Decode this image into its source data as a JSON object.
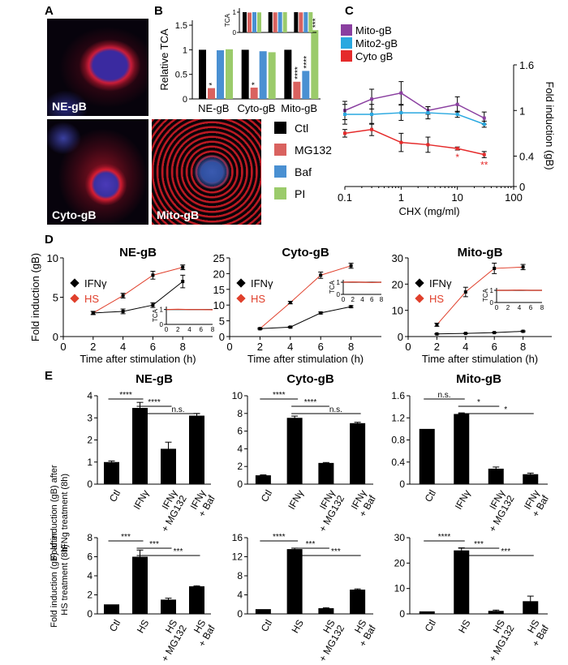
{
  "panels": {
    "A": "A",
    "B": "B",
    "C": "C",
    "D": "D",
    "E": "E"
  },
  "panelA": {
    "images": [
      {
        "id": "ne",
        "label": "NE-gB"
      },
      {
        "id": "cyto",
        "label": "Cyto-gB"
      },
      {
        "id": "mito",
        "label": "Mito-gB"
      }
    ]
  },
  "colors": {
    "ctl": "#000000",
    "mg132": "#d9625f",
    "baf": "#4a90d2",
    "pi": "#9bcb6b",
    "mito": "#8a3fa0",
    "mito2": "#29a8e0",
    "cyto": "#e52b2b",
    "red": "#e0402c",
    "black": "#000000",
    "gray": "#888888"
  },
  "chart_data": [
    {
      "id": "B",
      "type": "bar",
      "ylabel": "Relative TCA",
      "ylim": [
        0,
        1.6
      ],
      "yticks": [
        0,
        0.5,
        1,
        1.5
      ],
      "categories": [
        "NE-gB",
        "Cyto-gB",
        "Mito-gB"
      ],
      "series": [
        {
          "name": "Ctl",
          "values": [
            1.0,
            1.0,
            1.0
          ]
        },
        {
          "name": "MG132",
          "values": [
            0.22,
            0.23,
            0.35
          ]
        },
        {
          "name": "Baf",
          "values": [
            0.99,
            0.97,
            0.57
          ]
        },
        {
          "name": "PI",
          "values": [
            1.01,
            0.95,
            1.4
          ]
        }
      ],
      "sig": [
        [
          "",
          "*",
          "",
          ""
        ],
        [
          "",
          "*",
          "",
          ""
        ],
        [
          "",
          "****",
          "****",
          "***"
        ]
      ],
      "legend": [
        "Ctl",
        "MG132",
        "Baf",
        "PI"
      ],
      "inset": {
        "ylabel": "TCA",
        "ylim": [
          0,
          1.2
        ],
        "yticks": [
          0,
          1
        ],
        "values": [
          [
            1.0,
            0.98,
            1.0,
            0.99
          ],
          [
            1.0,
            0.99,
            1.0,
            1.0
          ],
          [
            1.0,
            0.99,
            1.0,
            1.0
          ]
        ]
      }
    },
    {
      "id": "C",
      "type": "line",
      "xscale": "log",
      "xlabel": "CHX (mg/ml)",
      "ylabel": "Fold induction (gB)",
      "xlim": [
        0.1,
        100
      ],
      "ylim": [
        0,
        1.6
      ],
      "yticks": [
        0,
        0.4,
        1.0,
        1.6
      ],
      "xticks": [
        0.1,
        1,
        10,
        100
      ],
      "series": [
        {
          "name": "Mito-gB",
          "x": [
            0.1,
            0.3,
            1,
            3,
            10,
            30
          ],
          "y": [
            1.0,
            1.15,
            1.23,
            1.0,
            1.08,
            0.9
          ],
          "err": [
            0.12,
            0.13,
            0.15,
            0.05,
            0.1,
            0.08
          ]
        },
        {
          "name": "Mito2-gB",
          "x": [
            0.1,
            0.3,
            1,
            3,
            10,
            30
          ],
          "y": [
            0.95,
            0.95,
            0.97,
            0.97,
            0.95,
            0.82
          ],
          "err": [
            0.13,
            0.13,
            0.1,
            0.08,
            0.04,
            0.04
          ]
        },
        {
          "name": "Cyto gB",
          "x": [
            0.1,
            0.3,
            1,
            3,
            10,
            30
          ],
          "y": [
            0.7,
            0.75,
            0.58,
            0.55,
            0.5,
            0.42
          ],
          "err": [
            0.05,
            0.08,
            0.12,
            0.1,
            0.02,
            0.04
          ]
        }
      ],
      "annotations": [
        {
          "x": 10,
          "text": "*"
        },
        {
          "x": 30,
          "text": "**"
        }
      ]
    },
    {
      "id": "D1",
      "type": "line",
      "title": "NE-gB",
      "xlabel": "Time after stimulation (h)",
      "ylabel": "Fold induction (gB)",
      "xlim": [
        0,
        10
      ],
      "ylim": [
        0,
        10
      ],
      "yticks": [
        0,
        5,
        10
      ],
      "xticks": [
        0,
        2,
        4,
        6,
        8
      ],
      "series": [
        {
          "name": "IFNγ",
          "x": [
            2,
            4,
            6,
            8
          ],
          "y": [
            3.0,
            3.2,
            4.0,
            7.0
          ],
          "err": [
            0.2,
            0.3,
            0.3,
            0.8
          ]
        },
        {
          "name": "HS",
          "x": [
            2,
            4,
            6,
            8
          ],
          "y": [
            3.0,
            5.2,
            7.8,
            8.8
          ],
          "err": [
            0.2,
            0.3,
            0.5,
            0.3
          ]
        }
      ],
      "inset": {
        "ylabel": "TCA",
        "yticks": [
          0,
          1
        ],
        "xticks": [
          0,
          2,
          4,
          6,
          8
        ],
        "x": [
          0,
          2,
          4,
          6,
          8
        ],
        "a": [
          1,
          1,
          1,
          1,
          1
        ],
        "b": [
          1,
          1.02,
          1,
          1,
          0.98
        ]
      }
    },
    {
      "id": "D2",
      "type": "line",
      "title": "Cyto-gB",
      "xlabel": "Time after stimulation (h)",
      "ylabel": "",
      "xlim": [
        0,
        10
      ],
      "ylim": [
        0,
        25
      ],
      "yticks": [
        0,
        5,
        10,
        15,
        20,
        25
      ],
      "xticks": [
        0,
        2,
        4,
        6,
        8
      ],
      "series": [
        {
          "name": "IFNγ",
          "x": [
            2,
            4,
            6,
            8
          ],
          "y": [
            2.5,
            3.0,
            7.5,
            9.5
          ],
          "err": [
            0.2,
            0.2,
            0.3,
            0.3
          ]
        },
        {
          "name": "HS",
          "x": [
            2,
            4,
            6,
            8
          ],
          "y": [
            2.5,
            10.8,
            19.5,
            22.5
          ],
          "err": [
            0.2,
            0.4,
            1.0,
            0.8
          ]
        }
      ],
      "inset": {
        "ylabel": "TCA",
        "yticks": [
          0,
          1
        ],
        "xticks": [
          0,
          2,
          4,
          6,
          8
        ],
        "x": [
          0,
          2,
          4,
          6,
          8
        ],
        "a": [
          1,
          1,
          1,
          1,
          1
        ],
        "b": [
          1,
          1.02,
          1,
          0.98,
          1
        ]
      }
    },
    {
      "id": "D3",
      "type": "line",
      "title": "Mito-gB",
      "xlabel": "Time after stimulation (h)",
      "ylabel": "",
      "xlim": [
        0,
        10
      ],
      "ylim": [
        0,
        30
      ],
      "yticks": [
        0,
        10,
        20,
        30
      ],
      "xticks": [
        0,
        2,
        4,
        6,
        8
      ],
      "series": [
        {
          "name": "IFNγ",
          "x": [
            2,
            4,
            6,
            8
          ],
          "y": [
            1.0,
            1.2,
            1.5,
            2.0
          ],
          "err": [
            0.1,
            0.1,
            0.1,
            0.2
          ]
        },
        {
          "name": "HS",
          "x": [
            2,
            4,
            6,
            8
          ],
          "y": [
            4.5,
            17.0,
            26.0,
            26.5
          ],
          "err": [
            0.6,
            1.8,
            2.0,
            1.0
          ]
        }
      ],
      "inset": {
        "ylabel": "TCA",
        "yticks": [
          0,
          1
        ],
        "xticks": [
          0,
          2,
          4,
          6,
          8
        ],
        "x": [
          0,
          2,
          4,
          6,
          8
        ],
        "a": [
          1,
          1,
          1,
          1,
          1
        ],
        "b": [
          1,
          1,
          1.02,
          1,
          1
        ]
      }
    },
    {
      "id": "E1",
      "type": "bar",
      "title": "NE-gB",
      "ylim": [
        0,
        4
      ],
      "yticks": [
        0,
        1,
        2,
        3,
        4
      ],
      "categories": [
        "Ctl",
        "IFNγ",
        "IFNγ + MG132",
        "IFNγ + Baf"
      ],
      "values": [
        1.0,
        3.45,
        1.6,
        3.1
      ],
      "err": [
        0.05,
        0.25,
        0.3,
        0.1
      ],
      "sig": [
        {
          "from": 0,
          "to": 1,
          "text": "****"
        },
        {
          "from": 1,
          "to": 2,
          "text": "****"
        },
        {
          "from": 1,
          "to": 3,
          "text": "n.s."
        }
      ]
    },
    {
      "id": "E2",
      "type": "bar",
      "title": "Cyto-gB",
      "ylim": [
        0,
        10
      ],
      "yticks": [
        0,
        2,
        4,
        6,
        8,
        10
      ],
      "categories": [
        "Ctl",
        "IFNγ",
        "IFNγ + MG132",
        "IFNγ + Baf"
      ],
      "values": [
        1.0,
        7.5,
        2.4,
        6.9
      ],
      "err": [
        0.05,
        0.2,
        0.05,
        0.1
      ],
      "sig": [
        {
          "from": 0,
          "to": 1,
          "text": "****"
        },
        {
          "from": 1,
          "to": 2,
          "text": "****"
        },
        {
          "from": 1,
          "to": 3,
          "text": "n.s."
        }
      ]
    },
    {
      "id": "E3",
      "type": "bar",
      "title": "Mito-gB",
      "ylim": [
        0,
        1.6
      ],
      "yticks": [
        0,
        0.4,
        0.8,
        1.2,
        1.6
      ],
      "categories": [
        "Ctl",
        "IFNγ",
        "IFNγ + MG132",
        "IFNγ + Baf"
      ],
      "values": [
        1.0,
        1.27,
        0.28,
        0.18
      ],
      "err": [
        0.0,
        0.02,
        0.03,
        0.02
      ],
      "sig": [
        {
          "from": 0,
          "to": 1,
          "text": "n.s."
        },
        {
          "from": 1,
          "to": 2,
          "text": "*"
        },
        {
          "from": 1,
          "to": 3,
          "text": "*"
        }
      ]
    },
    {
      "id": "E4",
      "type": "bar",
      "ylim": [
        0,
        8
      ],
      "yticks": [
        0,
        2,
        4,
        6,
        8
      ],
      "categories": [
        "Ctl",
        "HS",
        "HS + MG132",
        "HS + Baf"
      ],
      "values": [
        1.0,
        6.0,
        1.5,
        2.9
      ],
      "err": [
        0.0,
        0.7,
        0.15,
        0.05
      ],
      "sig": [
        {
          "from": 0,
          "to": 1,
          "text": "***"
        },
        {
          "from": 1,
          "to": 2,
          "text": "***"
        },
        {
          "from": 1,
          "to": 3,
          "text": "***"
        }
      ]
    },
    {
      "id": "E5",
      "type": "bar",
      "ylim": [
        0,
        16
      ],
      "yticks": [
        0,
        4,
        8,
        12,
        16
      ],
      "categories": [
        "Ctl",
        "HS",
        "HS + MG132",
        "HS + Baf"
      ],
      "values": [
        1.0,
        13.6,
        1.2,
        5.1
      ],
      "err": [
        0.0,
        0.2,
        0.1,
        0.15
      ],
      "sig": [
        {
          "from": 0,
          "to": 1,
          "text": "****"
        },
        {
          "from": 1,
          "to": 2,
          "text": "***"
        },
        {
          "from": 1,
          "to": 3,
          "text": "***"
        }
      ]
    },
    {
      "id": "E6",
      "type": "bar",
      "ylim": [
        0,
        30
      ],
      "yticks": [
        0,
        10,
        20,
        30
      ],
      "categories": [
        "Ctl",
        "HS",
        "HS + MG132",
        "HS + Baf"
      ],
      "values": [
        1.0,
        25.0,
        1.2,
        5.0
      ],
      "err": [
        0.0,
        1.0,
        0.3,
        2.0
      ],
      "sig": [
        {
          "from": 0,
          "to": 1,
          "text": "****"
        },
        {
          "from": 1,
          "to": 2,
          "text": "***"
        },
        {
          "from": 1,
          "to": 3,
          "text": "***"
        }
      ]
    }
  ],
  "E_ylabels": {
    "top": [
      "Fold induction (gB) after",
      "IFNg treatment (8h)"
    ],
    "bottom": [
      "Fold induction (gB) after",
      "HS treatment (8h)"
    ]
  }
}
